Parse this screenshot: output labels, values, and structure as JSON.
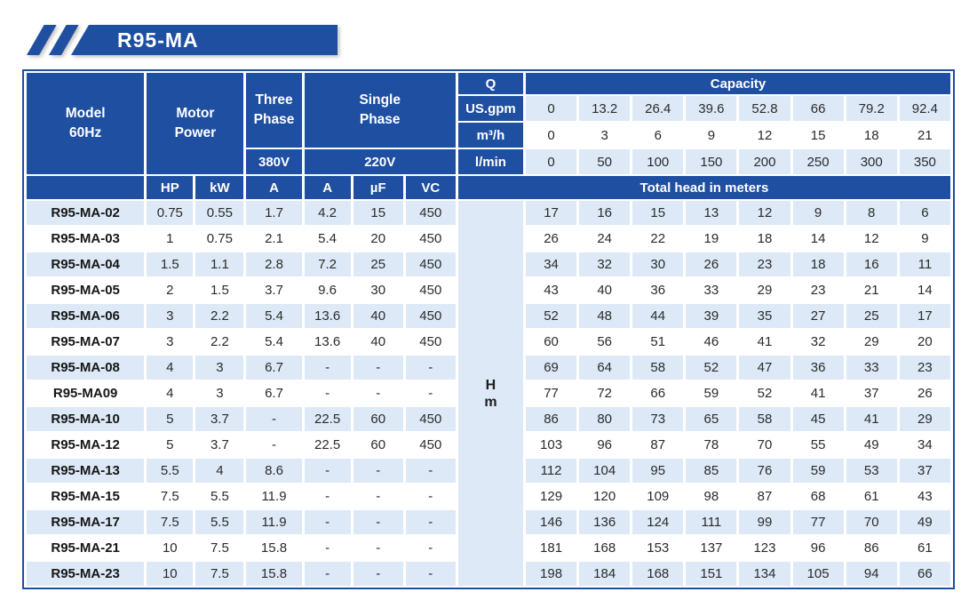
{
  "banner": {
    "title": "R95-MA"
  },
  "colors": {
    "primary_blue": "#1f4fa0",
    "light_blue": "#dde9f7",
    "text_dark": "#2b2b2b",
    "white": "#ffffff"
  },
  "table": {
    "header": {
      "model_line1": "Model",
      "model_line2": "60Hz",
      "motor_line1": "Motor",
      "motor_line2": "Power",
      "three_phase_line1": "Three",
      "three_phase_line2": "Phase",
      "three_phase_voltage": "380V",
      "single_phase_line1": "Single",
      "single_phase_line2": "Phase",
      "single_phase_voltage": "220V",
      "q_label": "Q",
      "capacity_label": "Capacity",
      "flow_rows": [
        {
          "label": "US.gpm",
          "shaded": true,
          "values": [
            "0",
            "13.2",
            "26.4",
            "39.6",
            "52.8",
            "66",
            "79.2",
            "92.4"
          ]
        },
        {
          "label": "m³/h",
          "shaded": false,
          "values": [
            "0",
            "3",
            "6",
            "9",
            "12",
            "15",
            "18",
            "21"
          ]
        },
        {
          "label": "l/min",
          "shaded": true,
          "values": [
            "0",
            "50",
            "100",
            "150",
            "200",
            "250",
            "300",
            "350"
          ]
        }
      ],
      "sub_headers": [
        "HP",
        "kW",
        "A",
        "A",
        "µF",
        "VC"
      ],
      "total_head_label": "Total head in meters"
    },
    "head_unit_line1": "H",
    "head_unit_line2": "m",
    "rows": [
      {
        "model": "R95-MA-02",
        "specs": [
          "0.75",
          "0.55",
          "1.7",
          "4.2",
          "15",
          "450"
        ],
        "head": [
          "17",
          "16",
          "15",
          "13",
          "12",
          "9",
          "8",
          "6"
        ]
      },
      {
        "model": "R95-MA-03",
        "specs": [
          "1",
          "0.75",
          "2.1",
          "5.4",
          "20",
          "450"
        ],
        "head": [
          "26",
          "24",
          "22",
          "19",
          "18",
          "14",
          "12",
          "9"
        ]
      },
      {
        "model": "R95-MA-04",
        "specs": [
          "1.5",
          "1.1",
          "2.8",
          "7.2",
          "25",
          "450"
        ],
        "head": [
          "34",
          "32",
          "30",
          "26",
          "23",
          "18",
          "16",
          "11"
        ]
      },
      {
        "model": "R95-MA-05",
        "specs": [
          "2",
          "1.5",
          "3.7",
          "9.6",
          "30",
          "450"
        ],
        "head": [
          "43",
          "40",
          "36",
          "33",
          "29",
          "23",
          "21",
          "14"
        ]
      },
      {
        "model": "R95-MA-06",
        "specs": [
          "3",
          "2.2",
          "5.4",
          "13.6",
          "40",
          "450"
        ],
        "head": [
          "52",
          "48",
          "44",
          "39",
          "35",
          "27",
          "25",
          "17"
        ]
      },
      {
        "model": "R95-MA-07",
        "specs": [
          "3",
          "2.2",
          "5.4",
          "13.6",
          "40",
          "450"
        ],
        "head": [
          "60",
          "56",
          "51",
          "46",
          "41",
          "32",
          "29",
          "20"
        ]
      },
      {
        "model": "R95-MA-08",
        "specs": [
          "4",
          "3",
          "6.7",
          "-",
          "-",
          "-"
        ],
        "head": [
          "69",
          "64",
          "58",
          "52",
          "47",
          "36",
          "33",
          "23"
        ]
      },
      {
        "model": "R95-MA09",
        "specs": [
          "4",
          "3",
          "6.7",
          "-",
          "-",
          "-"
        ],
        "head": [
          "77",
          "72",
          "66",
          "59",
          "52",
          "41",
          "37",
          "26"
        ]
      },
      {
        "model": "R95-MA-10",
        "specs": [
          "5",
          "3.7",
          "-",
          "22.5",
          "60",
          "450"
        ],
        "head": [
          "86",
          "80",
          "73",
          "65",
          "58",
          "45",
          "41",
          "29"
        ]
      },
      {
        "model": "R95-MA-12",
        "specs": [
          "5",
          "3.7",
          "-",
          "22.5",
          "60",
          "450"
        ],
        "head": [
          "103",
          "96",
          "87",
          "78",
          "70",
          "55",
          "49",
          "34"
        ]
      },
      {
        "model": "R95-MA-13",
        "specs": [
          "5.5",
          "4",
          "8.6",
          "-",
          "-",
          "-"
        ],
        "head": [
          "112",
          "104",
          "95",
          "85",
          "76",
          "59",
          "53",
          "37"
        ]
      },
      {
        "model": "R95-MA-15",
        "specs": [
          "7.5",
          "5.5",
          "11.9",
          "-",
          "-",
          "-"
        ],
        "head": [
          "129",
          "120",
          "109",
          "98",
          "87",
          "68",
          "61",
          "43"
        ]
      },
      {
        "model": "R95-MA-17",
        "specs": [
          "7.5",
          "5.5",
          "11.9",
          "-",
          "-",
          "-"
        ],
        "head": [
          "146",
          "136",
          "124",
          "111",
          "99",
          "77",
          "70",
          "49"
        ]
      },
      {
        "model": "R95-MA-21",
        "specs": [
          "10",
          "7.5",
          "15.8",
          "-",
          "-",
          "-"
        ],
        "head": [
          "181",
          "168",
          "153",
          "137",
          "123",
          "96",
          "86",
          "61"
        ]
      },
      {
        "model": "R95-MA-23",
        "specs": [
          "10",
          "7.5",
          "15.8",
          "-",
          "-",
          "-"
        ],
        "head": [
          "198",
          "184",
          "168",
          "151",
          "134",
          "105",
          "94",
          "66"
        ]
      }
    ]
  }
}
